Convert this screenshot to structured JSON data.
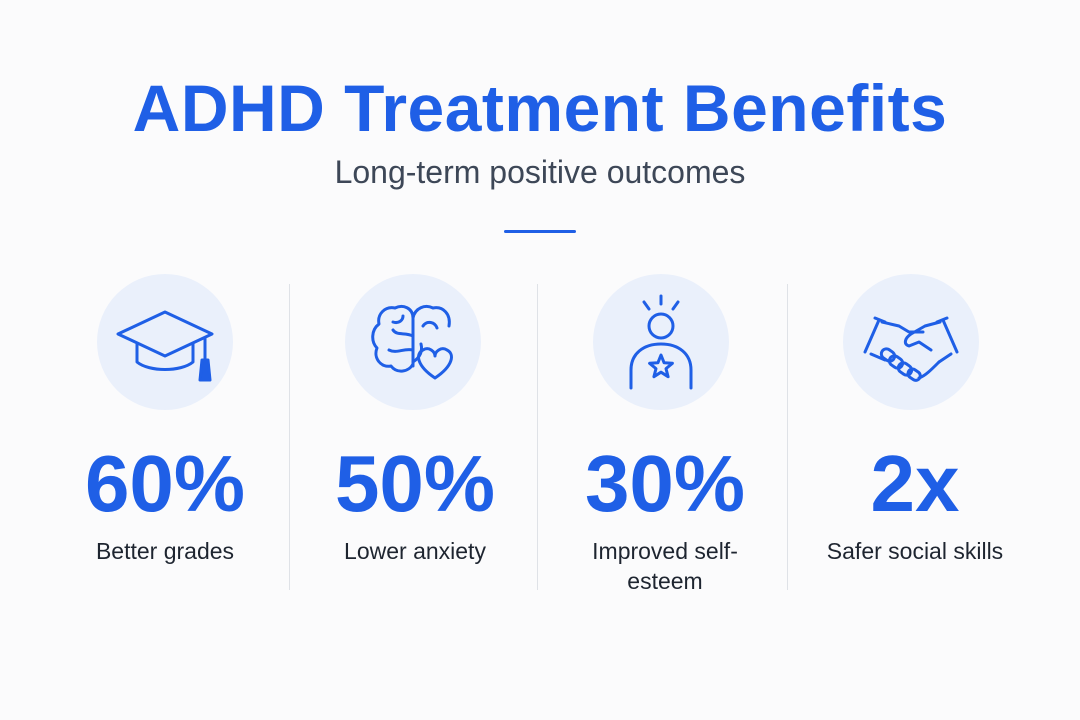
{
  "header": {
    "title": "ADHD Treatment Benefits",
    "subtitle": "Long-term positive outcomes"
  },
  "colors": {
    "accent": "#1f5fe6",
    "icon_background": "#eaf0fb",
    "subtitle_text": "#3d4757",
    "label_text": "#1e2530"
  },
  "stats": [
    {
      "icon": "graduation-cap-icon",
      "value": "60%",
      "label": "Better grades"
    },
    {
      "icon": "brain-heart-icon",
      "value": "50%",
      "label": "Lower anxiety"
    },
    {
      "icon": "person-star-icon",
      "value": "30%",
      "label": "Improved self-esteem"
    },
    {
      "icon": "handshake-icon",
      "value": "2x",
      "label": "Safer social skills"
    }
  ]
}
